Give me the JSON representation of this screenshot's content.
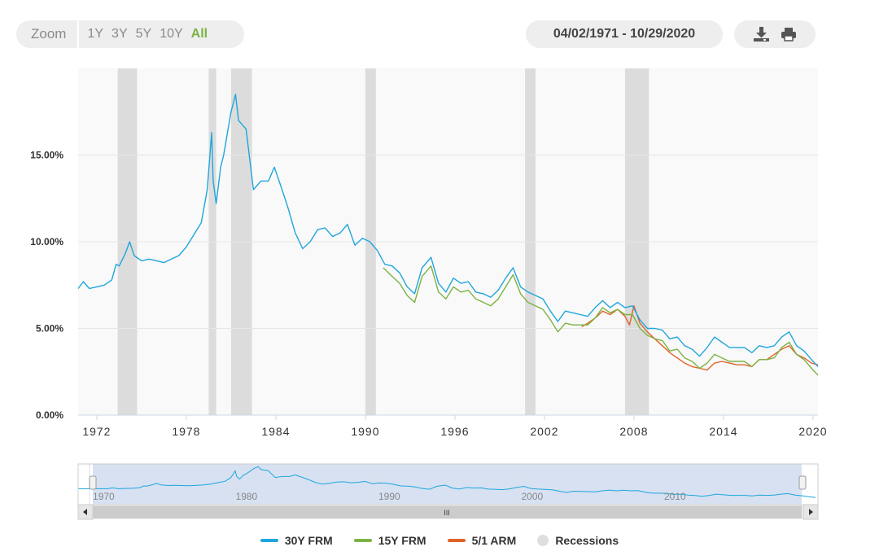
{
  "toolbar": {
    "zoom_label": "Zoom",
    "zoom_options": [
      "1Y",
      "3Y",
      "5Y",
      "10Y",
      "All"
    ],
    "active_zoom": "All",
    "date_range": "04/02/1971 - 10/29/2020",
    "download_icon": "download-icon",
    "print_icon": "print-icon"
  },
  "colors": {
    "frm30": "#1ea6dc",
    "frm15": "#7cb342",
    "arm51": "#e0632a",
    "recession": "#dcdcdc",
    "navigator_fill": "#c9d7ee"
  },
  "chart_data": {
    "type": "line",
    "title": "",
    "xlabel": "",
    "ylabel": "",
    "x_ticks": [
      "1972",
      "1978",
      "1984",
      "1990",
      "1996",
      "2002",
      "2008",
      "2014",
      "2020"
    ],
    "y_ticks": [
      "0.00%",
      "5.00%",
      "10.00%",
      "15.00%"
    ],
    "xlim": [
      1971.25,
      2020.83
    ],
    "ylim": [
      0,
      20
    ],
    "recessions": [
      [
        1973.9,
        1975.2
      ],
      [
        1980.0,
        1980.5
      ],
      [
        1981.5,
        1982.9
      ],
      [
        1990.5,
        1991.2
      ],
      [
        2001.2,
        2001.9
      ],
      [
        2007.9,
        2009.5
      ]
    ],
    "series": [
      {
        "name": "30Y FRM",
        "x": [
          1971.25,
          1971.6,
          1972.0,
          1972.5,
          1973.0,
          1973.5,
          1973.8,
          1974.0,
          1974.4,
          1974.7,
          1975.0,
          1975.5,
          1976.0,
          1976.5,
          1977.0,
          1977.5,
          1978.0,
          1978.5,
          1979.0,
          1979.5,
          1979.9,
          1980.2,
          1980.3,
          1980.5,
          1980.8,
          1981.0,
          1981.5,
          1981.8,
          1982.0,
          1982.5,
          1983.0,
          1983.5,
          1984.0,
          1984.4,
          1984.8,
          1985.3,
          1985.8,
          1986.3,
          1986.8,
          1987.3,
          1987.8,
          1988.3,
          1988.8,
          1989.3,
          1989.8,
          1990.3,
          1990.8,
          1991.3,
          1991.8,
          1992.3,
          1992.8,
          1993.3,
          1993.8,
          1994.3,
          1994.9,
          1995.4,
          1995.9,
          1996.4,
          1996.9,
          1997.4,
          1997.9,
          1998.4,
          1998.9,
          1999.4,
          1999.9,
          2000.4,
          2000.9,
          2001.4,
          2001.9,
          2002.4,
          2002.9,
          2003.4,
          2003.9,
          2004.4,
          2004.9,
          2005.4,
          2005.9,
          2006.4,
          2006.9,
          2007.4,
          2007.9,
          2008.4,
          2008.9,
          2009.4,
          2009.9,
          2010.4,
          2010.9,
          2011.4,
          2011.9,
          2012.4,
          2012.9,
          2013.4,
          2013.9,
          2014.4,
          2014.9,
          2015.4,
          2015.9,
          2016.4,
          2016.9,
          2017.4,
          2017.9,
          2018.4,
          2018.9,
          2019.4,
          2019.9,
          2020.4,
          2020.83
        ],
        "y": [
          7.3,
          7.7,
          7.3,
          7.4,
          7.5,
          7.8,
          8.7,
          8.6,
          9.3,
          10.0,
          9.2,
          8.9,
          9.0,
          8.9,
          8.8,
          9.0,
          9.2,
          9.7,
          10.4,
          11.1,
          13.0,
          16.3,
          13.5,
          12.2,
          14.3,
          15.0,
          17.5,
          18.5,
          17.0,
          16.5,
          13.0,
          13.5,
          13.5,
          14.3,
          13.3,
          12.0,
          10.5,
          9.6,
          10.0,
          10.7,
          10.8,
          10.3,
          10.5,
          11.0,
          9.8,
          10.2,
          10.0,
          9.5,
          8.7,
          8.6,
          8.2,
          7.4,
          7.0,
          8.5,
          9.1,
          7.6,
          7.1,
          7.9,
          7.6,
          7.7,
          7.1,
          7.0,
          6.8,
          7.2,
          7.9,
          8.5,
          7.4,
          7.1,
          6.9,
          6.7,
          6.0,
          5.4,
          6.0,
          5.9,
          5.8,
          5.7,
          6.2,
          6.6,
          6.2,
          6.5,
          6.2,
          6.3,
          5.5,
          5.0,
          5.0,
          4.9,
          4.4,
          4.5,
          4.0,
          3.8,
          3.4,
          3.9,
          4.5,
          4.2,
          3.9,
          3.9,
          3.9,
          3.6,
          4.0,
          3.9,
          4.0,
          4.5,
          4.8,
          4.0,
          3.7,
          3.2,
          2.8
        ]
      },
      {
        "name": "15Y FRM",
        "x": [
          1991.7,
          1992.3,
          1992.8,
          1993.3,
          1993.8,
          1994.3,
          1994.9,
          1995.4,
          1995.9,
          1996.4,
          1996.9,
          1997.4,
          1997.9,
          1998.4,
          1998.9,
          1999.4,
          1999.9,
          2000.4,
          2000.9,
          2001.4,
          2001.9,
          2002.4,
          2002.9,
          2003.4,
          2003.9,
          2004.4,
          2004.9,
          2005.4,
          2005.9,
          2006.4,
          2006.9,
          2007.4,
          2007.9,
          2008.4,
          2008.9,
          2009.4,
          2009.9,
          2010.4,
          2010.9,
          2011.4,
          2011.9,
          2012.4,
          2012.9,
          2013.4,
          2013.9,
          2014.4,
          2014.9,
          2015.4,
          2015.9,
          2016.4,
          2016.9,
          2017.4,
          2017.9,
          2018.4,
          2018.9,
          2019.4,
          2019.9,
          2020.4,
          2020.83
        ],
        "y": [
          8.5,
          8.0,
          7.6,
          6.9,
          6.5,
          8.0,
          8.6,
          7.1,
          6.7,
          7.4,
          7.1,
          7.2,
          6.7,
          6.5,
          6.3,
          6.7,
          7.4,
          8.1,
          7.0,
          6.5,
          6.3,
          6.1,
          5.5,
          4.8,
          5.3,
          5.2,
          5.2,
          5.2,
          5.6,
          6.2,
          5.9,
          6.1,
          5.8,
          5.8,
          5.0,
          4.6,
          4.4,
          4.3,
          3.7,
          3.8,
          3.3,
          3.1,
          2.7,
          3.0,
          3.5,
          3.3,
          3.1,
          3.1,
          3.1,
          2.8,
          3.2,
          3.2,
          3.3,
          3.9,
          4.2,
          3.5,
          3.2,
          2.7,
          2.3
        ]
      },
      {
        "name": "5/1 ARM",
        "x": [
          2005.0,
          2005.4,
          2005.9,
          2006.4,
          2006.9,
          2007.4,
          2007.9,
          2008.2,
          2008.5,
          2008.9,
          2009.4,
          2009.9,
          2010.4,
          2010.9,
          2011.4,
          2011.9,
          2012.4,
          2012.9,
          2013.4,
          2013.9,
          2014.4,
          2014.9,
          2015.4,
          2015.9,
          2016.4,
          2016.9,
          2017.4,
          2017.9,
          2018.4,
          2018.9,
          2019.4,
          2019.9,
          2020.4,
          2020.83
        ],
        "y": [
          5.1,
          5.3,
          5.6,
          6.0,
          5.8,
          6.1,
          5.7,
          5.2,
          6.3,
          5.3,
          4.8,
          4.4,
          4.0,
          3.6,
          3.3,
          3.0,
          2.8,
          2.7,
          2.6,
          3.0,
          3.1,
          3.0,
          2.9,
          2.9,
          2.8,
          3.2,
          3.2,
          3.5,
          3.8,
          4.0,
          3.5,
          3.3,
          3.0,
          2.9
        ]
      }
    ],
    "navigator": {
      "x_ticks": [
        "1970",
        "1980",
        "1990",
        "2000",
        "2010"
      ],
      "xlim": [
        1969.2,
        2021.0
      ],
      "scrollbar_label": "III"
    },
    "legend": [
      {
        "name": "30Y FRM",
        "kind": "line"
      },
      {
        "name": "15Y FRM",
        "kind": "line"
      },
      {
        "name": "5/1 ARM",
        "kind": "line"
      },
      {
        "name": "Recessions",
        "kind": "dot"
      }
    ]
  }
}
